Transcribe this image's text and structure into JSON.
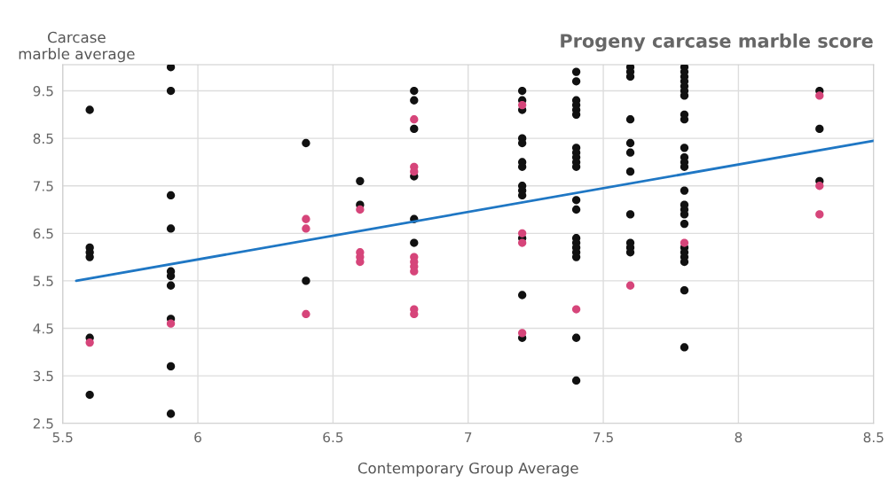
{
  "chart_data": {
    "type": "scatter",
    "title": "Progeny carcase marble score",
    "xlabel": "Contemporary Group Average",
    "ylabel": "Carcase\nmarble average",
    "xlim": [
      5.5,
      8.5
    ],
    "xticks": [
      5.5,
      6,
      6.5,
      7,
      7.5,
      8,
      8.5
    ],
    "ylim": [
      2.5,
      10.05
    ],
    "yticks": [
      2.5,
      3.5,
      4.5,
      5.5,
      6.5,
      7.5,
      8.5,
      9.5
    ],
    "grid": true,
    "marker": "circle",
    "legend": false,
    "series": [
      {
        "color": "#111111",
        "x": [
          5.6,
          5.6,
          5.6,
          5.6,
          5.6,
          5.6,
          5.9,
          5.9,
          5.9,
          5.9,
          5.9,
          5.9,
          5.9,
          5.9,
          5.9,
          5.9,
          6.4,
          6.4,
          6.6,
          6.6,
          6.8,
          6.8,
          6.8,
          6.8,
          6.8,
          6.8,
          7.2,
          7.2,
          7.2,
          7.2,
          7.2,
          7.2,
          7.2,
          7.2,
          7.2,
          7.2,
          7.2,
          7.2,
          7.2,
          7.4,
          7.4,
          7.4,
          7.4,
          7.4,
          7.4,
          7.4,
          7.4,
          7.4,
          7.4,
          7.4,
          7.4,
          7.4,
          7.4,
          7.4,
          7.4,
          7.4,
          7.4,
          7.4,
          7.4,
          7.6,
          7.6,
          7.6,
          7.6,
          7.6,
          7.6,
          7.6,
          7.6,
          7.6,
          7.6,
          7.6,
          7.8,
          7.8,
          7.8,
          7.8,
          7.8,
          7.8,
          7.8,
          7.8,
          7.8,
          7.8,
          7.8,
          7.8,
          7.8,
          7.8,
          7.8,
          7.8,
          7.8,
          7.8,
          7.8,
          7.8,
          7.8,
          7.8,
          7.8,
          7.8,
          8.3,
          8.3,
          8.3
        ],
        "values": [
          9.1,
          6.2,
          6.1,
          6.0,
          4.3,
          3.1,
          10.0,
          9.5,
          7.3,
          6.6,
          5.7,
          5.6,
          5.4,
          4.7,
          3.7,
          2.7,
          8.4,
          5.5,
          7.6,
          7.1,
          9.5,
          9.3,
          8.7,
          7.7,
          6.8,
          6.3,
          9.5,
          9.3,
          9.1,
          8.5,
          8.4,
          8.0,
          7.9,
          7.5,
          7.4,
          7.3,
          6.4,
          5.2,
          4.3,
          9.9,
          9.7,
          9.3,
          9.2,
          9.1,
          9.0,
          8.3,
          8.2,
          8.1,
          8.0,
          7.9,
          7.2,
          7.0,
          6.4,
          6.3,
          6.2,
          6.1,
          6.0,
          4.3,
          3.4,
          10.0,
          9.9,
          9.8,
          8.9,
          8.4,
          8.2,
          7.8,
          6.9,
          6.3,
          6.2,
          6.1,
          10.0,
          9.9,
          9.8,
          9.7,
          9.6,
          9.5,
          9.4,
          9.0,
          8.9,
          8.3,
          8.1,
          8.0,
          7.9,
          7.4,
          7.1,
          7.0,
          6.9,
          6.7,
          6.2,
          6.1,
          6.0,
          5.9,
          5.3,
          4.1,
          9.5,
          8.7,
          7.6
        ]
      },
      {
        "color": "#d6457a",
        "x": [
          5.6,
          5.9,
          6.4,
          6.4,
          6.4,
          6.6,
          6.6,
          6.6,
          6.6,
          6.8,
          6.8,
          6.8,
          6.8,
          6.8,
          6.8,
          6.8,
          6.8,
          6.8,
          7.2,
          7.2,
          7.2,
          7.2,
          7.4,
          7.6,
          7.8,
          8.3,
          8.3,
          8.3
        ],
        "values": [
          4.2,
          4.6,
          6.8,
          6.6,
          4.8,
          7.0,
          6.1,
          6.0,
          5.9,
          8.9,
          7.9,
          7.8,
          6.0,
          5.9,
          5.8,
          5.7,
          4.9,
          4.8,
          9.2,
          6.5,
          6.3,
          4.4,
          4.9,
          5.4,
          6.3,
          9.4,
          7.5,
          6.9
        ]
      },
      {
        "type": "line",
        "color": "#1f77c4",
        "marker": "none",
        "x": [
          5.55,
          8.5
        ],
        "values": [
          5.5,
          8.45
        ]
      }
    ]
  }
}
